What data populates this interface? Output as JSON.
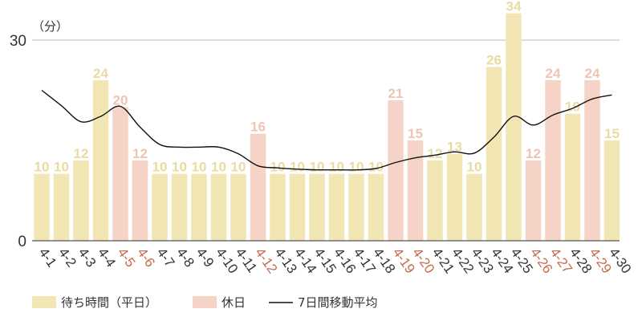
{
  "chart_data": {
    "type": "bar",
    "y_unit_label": "（分）",
    "ylim": [
      0,
      35
    ],
    "yticks": [
      0,
      30
    ],
    "categories": [
      "4-1",
      "4-2",
      "4-3",
      "4-4",
      "4-5",
      "4-6",
      "4-7",
      "4-8",
      "4-9",
      "4-10",
      "4-11",
      "4-12",
      "4-13",
      "4-14",
      "4-15",
      "4-16",
      "4-17",
      "4-18",
      "4-19",
      "4-20",
      "4-21",
      "4-22",
      "4-23",
      "4-24",
      "4-25",
      "4-26",
      "4-27",
      "4-28",
      "4-29",
      "4-30"
    ],
    "series": [
      {
        "name": "待ち時間（平日）",
        "color": "#f1e6b4",
        "label_color": "#e8dca0",
        "values": [
          10,
          10,
          12,
          24,
          null,
          null,
          10,
          10,
          10,
          10,
          10,
          null,
          10,
          10,
          10,
          10,
          10,
          10,
          null,
          null,
          12,
          13,
          10,
          26,
          34,
          null,
          null,
          19,
          null,
          15
        ]
      },
      {
        "name": "休日",
        "color": "#f5d3c6",
        "label_color": "#efc4b4",
        "values": [
          null,
          null,
          null,
          null,
          20,
          12,
          null,
          null,
          null,
          null,
          null,
          16,
          null,
          null,
          null,
          null,
          null,
          null,
          21,
          15,
          null,
          null,
          null,
          null,
          null,
          12,
          24,
          null,
          24,
          null
        ]
      }
    ],
    "holiday_tick_color": "#c8694a",
    "tick_color": "#333333",
    "moving_average": {
      "name": "7日間移動平均",
      "color": "#111111",
      "values": [
        22.5,
        20.2,
        17.8,
        18.6,
        20.1,
        17.0,
        14.4,
        14.0,
        14.0,
        14.0,
        13.0,
        11.2,
        10.9,
        10.7,
        10.6,
        10.6,
        10.6,
        10.8,
        11.7,
        12.4,
        12.8,
        13.3,
        13.1,
        15.5,
        18.6,
        17.3,
        18.8,
        19.8,
        21.2,
        21.8
      ]
    },
    "legend": [
      {
        "label": "待ち時間（平日）",
        "color": "#f1e6b4",
        "kind": "box"
      },
      {
        "label": "休日",
        "color": "#f5d3c6",
        "kind": "box"
      },
      {
        "label": "7日間移動平均",
        "color": "#111111",
        "kind": "line"
      }
    ],
    "grid": true,
    "legend_position": "bottom-left"
  }
}
